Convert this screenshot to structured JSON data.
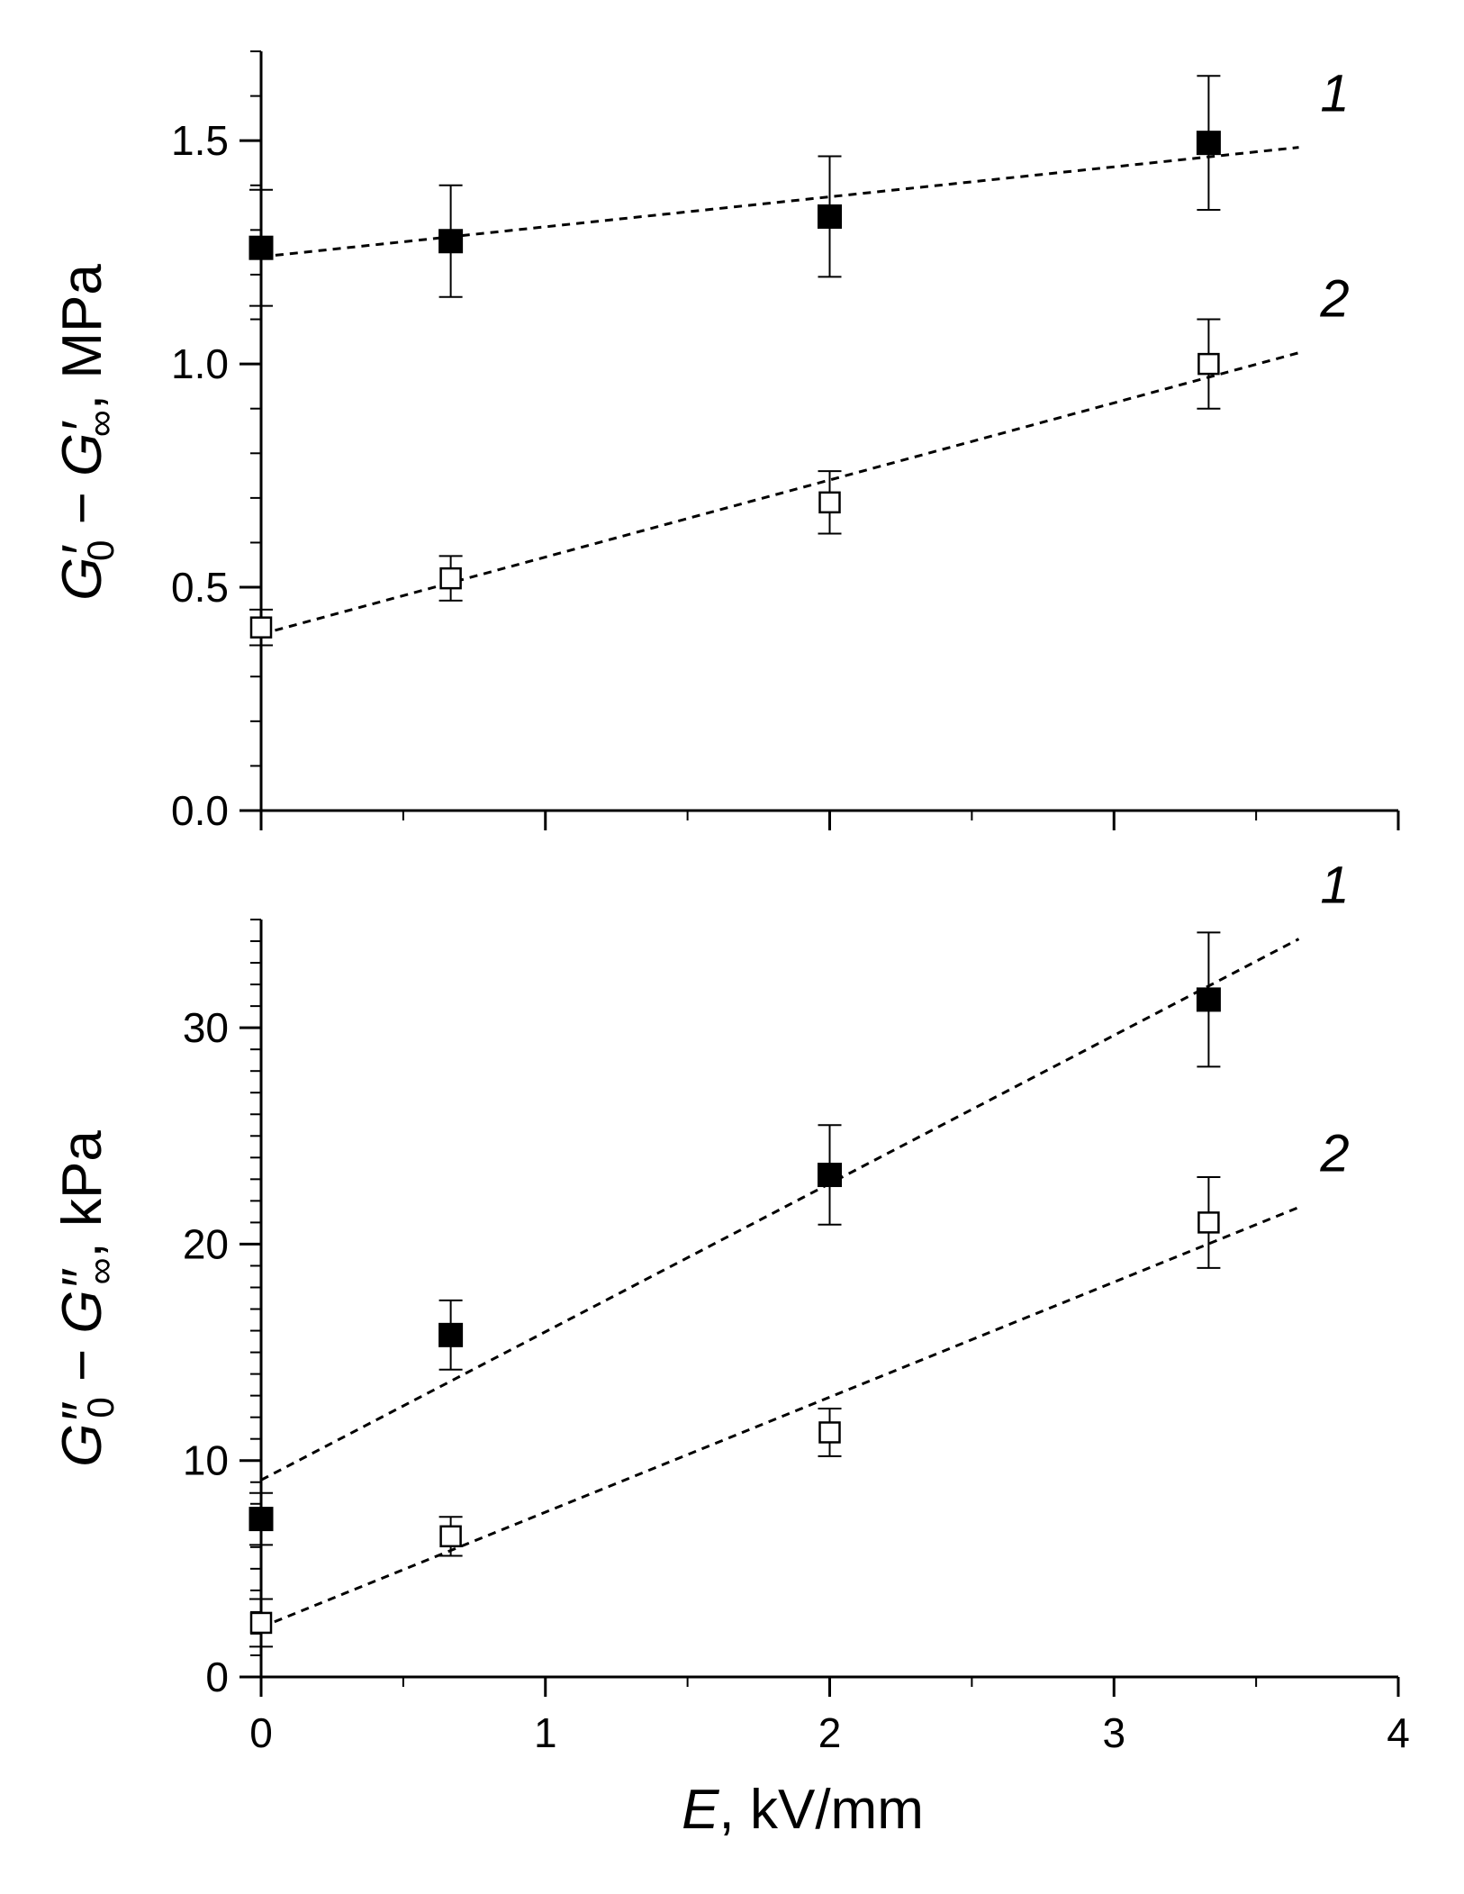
{
  "chart_data": [
    {
      "type": "scatter",
      "xlim": [
        0,
        4
      ],
      "ylim": [
        0,
        1.7
      ],
      "x_ticks": [
        "0",
        "1",
        "2",
        "3",
        "4"
      ],
      "y_ticks": [
        {
          "value": 0.0,
          "label": "0.0"
        },
        {
          "value": 0.5,
          "label": "0.5"
        },
        {
          "value": 1.0,
          "label": "1.0"
        },
        {
          "value": 1.5,
          "label": "1.5"
        }
      ],
      "ylabel": {
        "prefix": "G",
        "sub1": "0",
        "mid": " − G",
        "sub2": "∞",
        "prime": "′",
        "unit": ", MPa"
      },
      "grid": false,
      "series": [
        {
          "name": "1",
          "marker": "filled-square",
          "color": "#000000",
          "points": [
            {
              "x": 0.0,
              "y": 1.26,
              "err": 0.13
            },
            {
              "x": 0.667,
              "y": 1.275,
              "err": 0.125
            },
            {
              "x": 2.0,
              "y": 1.33,
              "err": 0.135
            },
            {
              "x": 3.333,
              "y": 1.495,
              "err": 0.15
            }
          ],
          "fit": {
            "x": [
              0.0,
              3.65
            ],
            "y": [
              1.24,
              1.485
            ]
          }
        },
        {
          "name": "2",
          "marker": "open-square",
          "color": "#000000",
          "points": [
            {
              "x": 0.0,
              "y": 0.41,
              "err": 0.04
            },
            {
              "x": 0.667,
              "y": 0.52,
              "err": 0.05
            },
            {
              "x": 2.0,
              "y": 0.69,
              "err": 0.07
            },
            {
              "x": 3.333,
              "y": 1.0,
              "err": 0.1
            }
          ],
          "fit": {
            "x": [
              0.0,
              3.65
            ],
            "y": [
              0.395,
              1.025
            ]
          }
        }
      ]
    },
    {
      "type": "scatter",
      "xlim": [
        0,
        4
      ],
      "ylim": [
        0,
        35
      ],
      "xlabel": {
        "var": "E",
        "unit": ", kV/mm"
      },
      "x_ticks": [
        "0",
        "1",
        "2",
        "3",
        "4"
      ],
      "y_ticks": [
        {
          "value": 0,
          "label": "0"
        },
        {
          "value": 10,
          "label": "10"
        },
        {
          "value": 20,
          "label": "20"
        },
        {
          "value": 30,
          "label": "30"
        }
      ],
      "ylabel": {
        "prefix": "G",
        "sub1": "0",
        "mid": " − G",
        "sub2": "∞",
        "prime": "″",
        "unit": ", kPa"
      },
      "grid": false,
      "series": [
        {
          "name": "1",
          "marker": "filled-square",
          "color": "#000000",
          "points": [
            {
              "x": 0.0,
              "y": 7.3,
              "err": 1.2
            },
            {
              "x": 0.667,
              "y": 15.8,
              "err": 1.6
            },
            {
              "x": 2.0,
              "y": 23.2,
              "err": 2.3
            },
            {
              "x": 3.333,
              "y": 31.3,
              "err": 3.1
            }
          ],
          "fit": {
            "x": [
              0.0,
              3.65
            ],
            "y": [
              9.1,
              34.1
            ]
          }
        },
        {
          "name": "2",
          "marker": "open-square",
          "color": "#000000",
          "points": [
            {
              "x": 0.0,
              "y": 2.5,
              "err": 1.1
            },
            {
              "x": 0.667,
              "y": 6.5,
              "err": 0.9
            },
            {
              "x": 2.0,
              "y": 11.3,
              "err": 1.1
            },
            {
              "x": 3.333,
              "y": 21.0,
              "err": 2.1
            }
          ],
          "fit": {
            "x": [
              0.0,
              3.65
            ],
            "y": [
              2.3,
              21.7
            ]
          }
        }
      ]
    }
  ]
}
